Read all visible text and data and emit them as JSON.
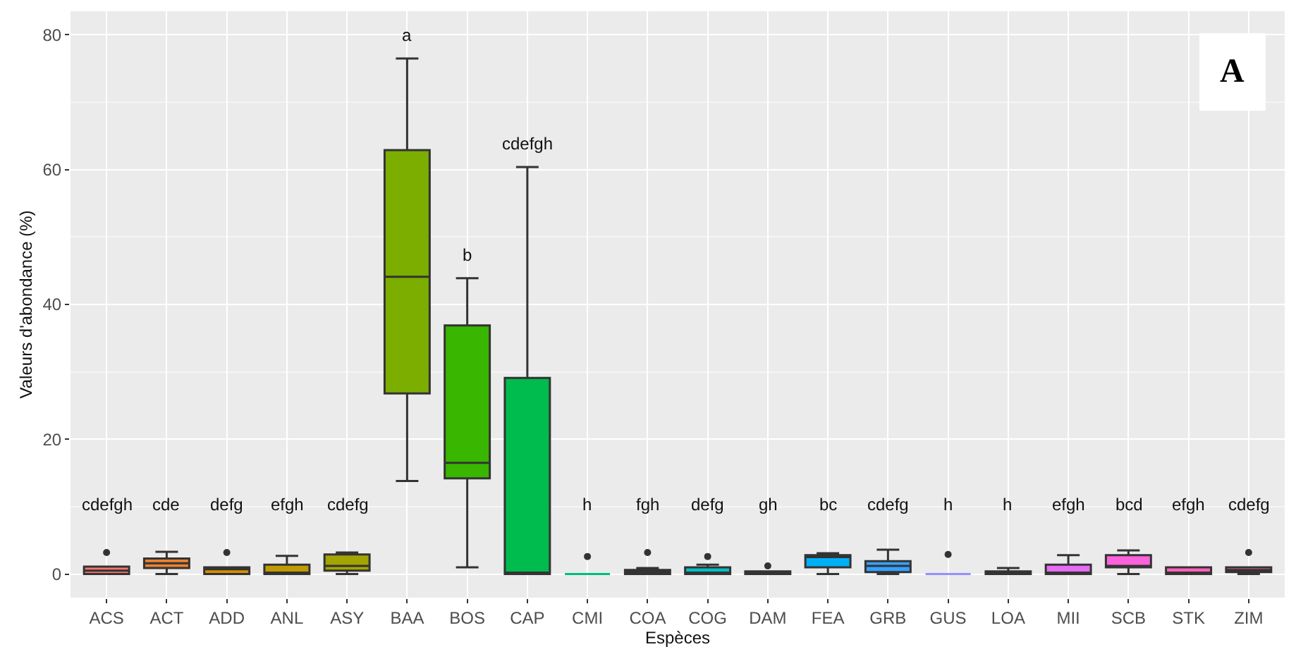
{
  "chart_data": {
    "type": "box",
    "xlabel": "Espèces",
    "ylabel": "Valeurs d'abondance (%)",
    "categories": [
      "ACS",
      "ACT",
      "ADD",
      "ANL",
      "ASY",
      "BAA",
      "BOS",
      "CAP",
      "CMI",
      "COA",
      "COG",
      "DAM",
      "FEA",
      "GRB",
      "GUS",
      "LOA",
      "MII",
      "SCB",
      "STK",
      "ZIM"
    ],
    "colors": [
      "#f8766d",
      "#ea8331",
      "#d89000",
      "#c09b00",
      "#a3a500",
      "#7cae00",
      "#39b600",
      "#00bb4e",
      "#00bf7d",
      "#00c1a3",
      "#00bfc4",
      "#00bae0",
      "#00b0f6",
      "#35a2ff",
      "#9590ff",
      "#c77cff",
      "#e76bf3",
      "#fa62db",
      "#ff62bc",
      "#ff6c91"
    ],
    "boxes": [
      {
        "low": 0,
        "q1": 0,
        "median": 0.5,
        "q3": 1.1,
        "high": 1.1,
        "outliers": [
          3.2
        ]
      },
      {
        "low": 0,
        "q1": 0.9,
        "median": 1.6,
        "q3": 2.3,
        "high": 3.3
      },
      {
        "low": 0,
        "q1": 0,
        "median": 0.7,
        "q3": 1.0,
        "high": 1.0,
        "outliers": [
          3.2
        ]
      },
      {
        "low": 0,
        "q1": 0,
        "median": 0,
        "q3": 1.4,
        "high": 2.7
      },
      {
        "low": 0,
        "q1": 0.5,
        "median": 1.2,
        "q3": 2.9,
        "high": 3.2
      },
      {
        "low": 13.8,
        "q1": 26.8,
        "median": 44.1,
        "q3": 62.9,
        "high": 76.5
      },
      {
        "low": 1.0,
        "q1": 14.2,
        "median": 16.5,
        "q3": 36.9,
        "high": 43.9
      },
      {
        "low": 0,
        "q1": 0,
        "median": 0,
        "q3": 29.1,
        "high": 60.4
      },
      {
        "low": 0,
        "q1": 0,
        "median": 0,
        "q3": 0,
        "high": 0,
        "outliers": [
          2.6
        ]
      },
      {
        "low": 0,
        "q1": 0,
        "median": 0.3,
        "q3": 0.6,
        "high": 0.9,
        "outliers": [
          3.2
        ]
      },
      {
        "low": 0,
        "q1": 0,
        "median": 0.1,
        "q3": 1.0,
        "high": 1.4,
        "outliers": [
          2.6
        ]
      },
      {
        "low": 0,
        "q1": 0,
        "median": 0.2,
        "q3": 0.4,
        "high": 0.4,
        "outliers": [
          1.2
        ]
      },
      {
        "low": 0,
        "q1": 1.0,
        "median": 2.5,
        "q3": 2.8,
        "high": 3.1
      },
      {
        "low": 0,
        "q1": 0.3,
        "median": 1.2,
        "q3": 1.9,
        "high": 3.6
      },
      {
        "low": 0,
        "q1": 0,
        "median": 0,
        "q3": 0,
        "high": 0,
        "outliers": [
          2.9
        ]
      },
      {
        "low": 0,
        "q1": 0,
        "median": 0.2,
        "q3": 0.4,
        "high": 0.9
      },
      {
        "low": 0,
        "q1": 0,
        "median": 0,
        "q3": 1.4,
        "high": 2.8
      },
      {
        "low": 0,
        "q1": 1.0,
        "median": 1.2,
        "q3": 2.8,
        "high": 3.5
      },
      {
        "low": 0,
        "q1": 0,
        "median": 0,
        "q3": 1.0,
        "high": 1.0
      },
      {
        "low": 0,
        "q1": 0.3,
        "median": 0.6,
        "q3": 1.0,
        "high": 1.0,
        "outliers": [
          3.2
        ]
      }
    ],
    "ylim": [
      -3.5,
      83.5
    ],
    "yticks": [
      0,
      20,
      40,
      60,
      80
    ],
    "grid": true,
    "annotations": [
      "cdefgh",
      "cde",
      "defg",
      "efgh",
      "cdefg",
      "a",
      "b",
      "cdefgh",
      "h",
      "fgh",
      "defg",
      "gh",
      "bc",
      "cdefg",
      "h",
      "h",
      "efgh",
      "bcd",
      "efgh",
      "cdefg",
      "A"
    ]
  }
}
